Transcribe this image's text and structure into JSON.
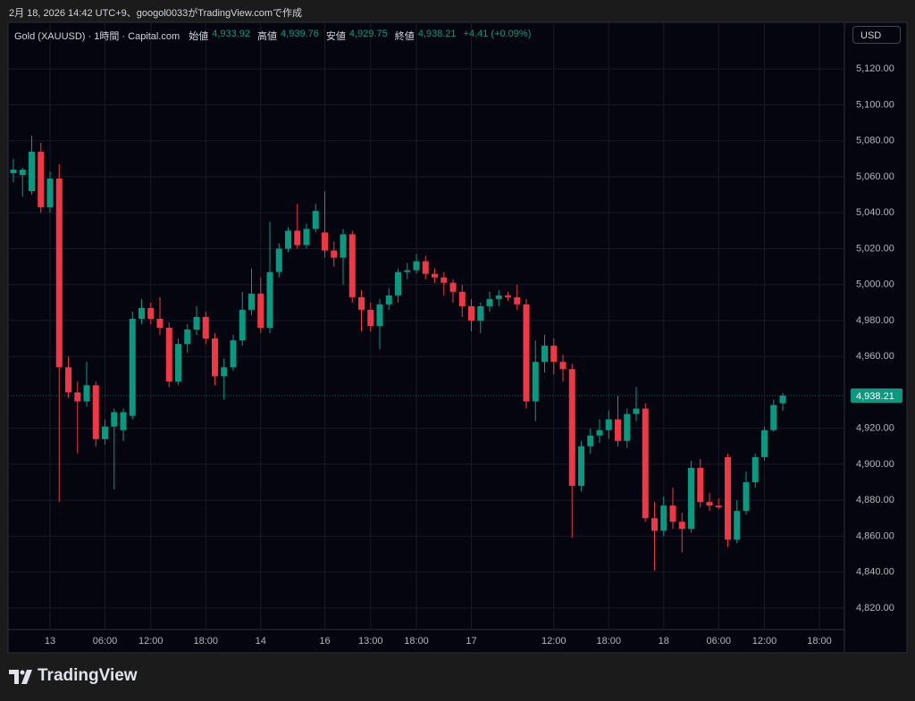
{
  "caption": "2月 18, 2026 14:42 UTC+9、googol0033がTradingView.comで作成",
  "brand": "TradingView",
  "chart_data": {
    "type": "candlestick",
    "title": "Gold (XAUUSD) · 1時間 · Capital.com",
    "ohlc_legend": [
      {
        "label": "始値",
        "value": "4,933.92"
      },
      {
        "label": "高値",
        "value": "4,939.76"
      },
      {
        "label": "安値",
        "value": "4,929.75"
      },
      {
        "label": "終値",
        "value": "4,938.21"
      }
    ],
    "change": "+4.41 (+0.09%)",
    "currency": "USD",
    "last_price": {
      "value": 4938.21,
      "label": "4,938.21"
    },
    "up_color": "#089981",
    "down_color": "#f23645",
    "grid": true,
    "categories": [
      null,
      null,
      null,
      null,
      "13",
      null,
      null,
      null,
      null,
      null,
      "06:00",
      null,
      null,
      null,
      null,
      "12:00",
      null,
      null,
      null,
      null,
      null,
      "18:00",
      null,
      null,
      null,
      null,
      null,
      "14",
      null,
      null,
      null,
      null,
      null,
      null,
      "16",
      null,
      null,
      null,
      null,
      "13:00",
      null,
      null,
      null,
      null,
      "18:00",
      null,
      null,
      null,
      null,
      null,
      "17",
      null,
      null,
      null,
      null,
      null,
      null,
      null,
      null,
      "12:00",
      null,
      null,
      null,
      null,
      null,
      "18:00",
      null,
      null,
      null,
      null,
      null,
      "18",
      null,
      null,
      null,
      null,
      null,
      "06:00",
      null,
      null,
      null,
      null,
      "12:00",
      null,
      null,
      null,
      null,
      null,
      "18:00",
      null,
      null
    ],
    "open": [
      5062,
      5061,
      5052,
      5074,
      5043,
      5059,
      4954,
      4940,
      4935,
      4944,
      4914,
      4921,
      4919,
      4927,
      4981,
      4987,
      4981,
      4976,
      4946,
      4967,
      4975,
      4982,
      4970,
      4949,
      4954,
      4969,
      4986,
      4995,
      4976,
      5007,
      5020,
      5030,
      5022,
      5031,
      5029,
      5019,
      5015,
      5028,
      4993,
      4986,
      4977,
      4989,
      4994,
      5007,
      5008,
      5013,
      5006,
      5004,
      5001,
      4996,
      4988,
      4980,
      4988,
      4992,
      4994,
      4993,
      4989,
      4935,
      4957,
      4966,
      4957,
      4953,
      4888,
      4910,
      4916,
      4919,
      4925,
      4913,
      4928,
      4931,
      4870,
      4863,
      4877,
      4868,
      4864,
      4898,
      4879,
      4877,
      4904,
      4858,
      4874,
      4890,
      4904,
      4919,
      4933.92,
      null,
      null,
      null,
      null,
      null,
      null
    ],
    "high": [
      5070,
      5065,
      5083,
      5079,
      5063,
      5067,
      4960,
      4946,
      4957,
      4946,
      4925,
      4931,
      4931,
      4985,
      4992,
      4990,
      4993,
      4979,
      4970,
      4978,
      4988,
      4985,
      4973,
      4959,
      4972,
      4996,
      5009,
      5004,
      5035,
      5023,
      5032,
      5045,
      5034,
      5045,
      5052,
      5024,
      5031,
      5030,
      4997,
      4990,
      4992,
      4998,
      5009,
      5012,
      5017,
      5016,
      5009,
      5007,
      5003,
      5000,
      4992,
      4990,
      4996,
      4997,
      4996,
      5000,
      4992,
      4969,
      4972,
      4970,
      4961,
      4956,
      4913,
      4920,
      4925,
      4930,
      4938,
      4931,
      4943,
      4934,
      4879,
      4882,
      4887,
      4873,
      4902,
      4903,
      4884,
      4881,
      4906,
      4880,
      4896,
      4906,
      4921,
      4936,
      4939.76,
      null,
      null,
      null,
      null,
      null,
      null
    ],
    "low": [
      5057,
      5049,
      5050,
      5040,
      5040,
      4879,
      4937,
      4906,
      4932,
      4910,
      4911,
      4886,
      4913,
      4925,
      4978,
      4978,
      4972,
      4943,
      4944,
      4962,
      4972,
      4967,
      4944,
      4936,
      4952,
      4966,
      4983,
      4973,
      4973,
      5004,
      5018,
      5020,
      5020,
      5029,
      5015,
      5010,
      5000,
      4990,
      4974,
      4974,
      4964,
      4986,
      4990,
      5003,
      5006,
      5003,
      5001,
      4994,
      4990,
      4982,
      4974,
      4973,
      4985,
      4988,
      4991,
      4986,
      4931,
      4924,
      4951,
      4950,
      4946,
      4859,
      4885,
      4906,
      4912,
      4914,
      4910,
      4909,
      4924,
      4868,
      4841,
      4860,
      4864,
      4851,
      4862,
      4876,
      4874,
      4875,
      4854,
      4856,
      4872,
      4887,
      4902,
      4918,
      4929.75,
      null,
      null,
      null,
      null,
      null,
      null
    ],
    "close": [
      5064,
      5064,
      5074,
      5043,
      5059,
      4954,
      4940,
      4935,
      4944,
      4914,
      4921,
      4929,
      4929,
      4981,
      4987,
      4981,
      4976,
      4946,
      4967,
      4975,
      4982,
      4970,
      4949,
      4954,
      4969,
      4986,
      4995,
      4976,
      5007,
      5020,
      5030,
      5022,
      5031,
      5041,
      5019,
      5015,
      5028,
      4993,
      4986,
      4977,
      4989,
      4994,
      5007,
      5008,
      5013,
      5006,
      5004,
      5001,
      4996,
      4988,
      4980,
      4988,
      4992,
      4994,
      4993,
      4989,
      4935,
      4957,
      4966,
      4957,
      4953,
      4888,
      4910,
      4916,
      4919,
      4925,
      4913,
      4928,
      4931,
      4870,
      4863,
      4877,
      4868,
      4864,
      4898,
      4879,
      4877,
      4876,
      4858,
      4874,
      4890,
      4904,
      4919,
      4933,
      4938.21,
      null,
      null,
      null,
      null,
      null,
      null
    ],
    "ylim": [
      4808,
      5146
    ],
    "yticks": [
      {
        "value": 4820,
        "label": "4,820.00"
      },
      {
        "value": 4840,
        "label": "4,840.00"
      },
      {
        "value": 4860,
        "label": "4,860.00"
      },
      {
        "value": 4880,
        "label": "4,880.00"
      },
      {
        "value": 4900,
        "label": "4,900.00"
      },
      {
        "value": 4920,
        "label": "4,920.00"
      },
      {
        "value": 4960,
        "label": "4,960.00"
      },
      {
        "value": 4980,
        "label": "4,980.00"
      },
      {
        "value": 5000,
        "label": "5,000.00"
      },
      {
        "value": 5020,
        "label": "5,020.00"
      },
      {
        "value": 5040,
        "label": "5,040.00"
      },
      {
        "value": 5060,
        "label": "5,060.00"
      },
      {
        "value": 5080,
        "label": "5,080.00"
      },
      {
        "value": 5100,
        "label": "5,100.00"
      },
      {
        "value": 5120,
        "label": "5,120.00"
      }
    ]
  }
}
